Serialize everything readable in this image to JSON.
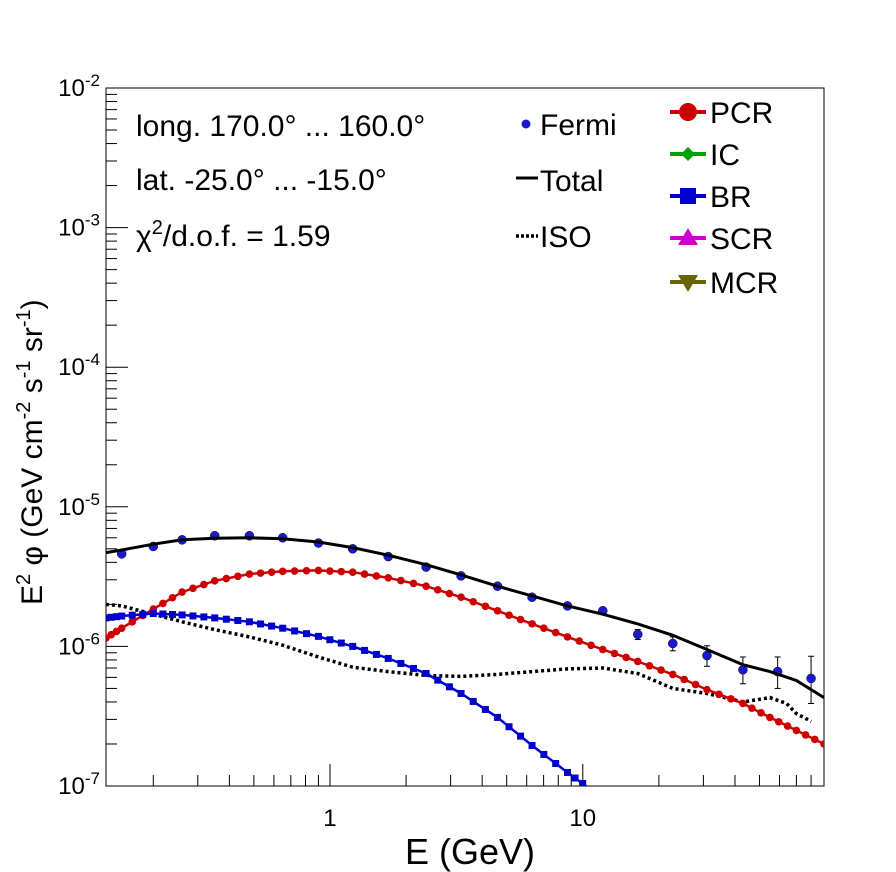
{
  "chart_data": {
    "type": "line",
    "x_scale": "log",
    "y_scale": "log",
    "xlim": [
      0.13,
      90
    ],
    "ylim": [
      1e-07,
      0.01
    ],
    "xlabel": "E (GeV)",
    "ylabel": {
      "prefix": "E",
      "sup1": "2",
      "phi": " φ (GeV cm",
      "sup2": "-2",
      "s": " s",
      "sup3": "-1",
      "sr": " sr",
      "sup4": "-1",
      "close": ")"
    },
    "x_ticks_labeled": [
      {
        "value": 1,
        "label": "1"
      },
      {
        "value": 10,
        "label": "10"
      }
    ],
    "y_ticks_labeled": [
      {
        "value": 1e-07,
        "base": "10",
        "exp": "-7"
      },
      {
        "value": 1e-06,
        "base": "10",
        "exp": "-6"
      },
      {
        "value": 1e-05,
        "base": "10",
        "exp": "-5"
      },
      {
        "value": 0.0001,
        "base": "10",
        "exp": "-4"
      },
      {
        "value": 0.001,
        "base": "10",
        "exp": "-3"
      },
      {
        "value": 0.01,
        "base": "10",
        "exp": "-2"
      }
    ],
    "annotations": {
      "line1": "long. 170.0° ... 160.0°",
      "line2": "lat. -25.0° ... -15.0°",
      "chi_symbol": "χ",
      "chi_sup": "2",
      "chi_rest": "/d.o.f. = 1.59"
    },
    "legend_left": [
      {
        "label": "Fermi",
        "style": "marker",
        "color": "#1a1acc"
      },
      {
        "label": "Total",
        "style": "solid",
        "color": "#000000"
      },
      {
        "label": "ISO",
        "style": "dotted",
        "color": "#000000"
      }
    ],
    "legend_right": [
      {
        "label": "PCR",
        "marker": "circle",
        "color": "#cc0000"
      },
      {
        "label": "IC",
        "marker": "diamond",
        "color": "#00a000"
      },
      {
        "label": "BR",
        "marker": "square",
        "color": "#0000cc"
      },
      {
        "label": "SCR",
        "marker": "triangle-up",
        "color": "#cc00cc"
      },
      {
        "label": "MCR",
        "marker": "triangle-down",
        "color": "#666600"
      }
    ],
    "series": [
      {
        "name": "Fermi",
        "kind": "points",
        "color": "#1a1acc",
        "x": [
          0.15,
          0.2,
          0.26,
          0.35,
          0.48,
          0.65,
          0.9,
          1.23,
          1.7,
          2.4,
          3.3,
          4.6,
          6.3,
          8.7,
          12,
          16.5,
          22.7,
          31,
          43,
          59,
          80
        ],
        "y": [
          4.6e-06,
          5.2e-06,
          5.8e-06,
          6.2e-06,
          6.2e-06,
          6e-06,
          5.5e-06,
          5e-06,
          4.4e-06,
          3.7e-06,
          3.2e-06,
          2.7e-06,
          2.25e-06,
          1.95e-06,
          1.8e-06,
          1.22e-06,
          1.05e-06,
          8.6e-07,
          6.8e-07,
          6.6e-07,
          5.9e-07
        ],
        "err_lo": [
          0,
          0,
          0,
          0,
          0,
          0,
          0,
          0,
          0,
          0,
          0,
          0,
          0,
          0,
          0,
          1e-07,
          1.2e-07,
          1.4e-07,
          1.4e-07,
          1.6e-07,
          2e-07
        ],
        "err_hi": [
          0,
          0,
          0,
          0,
          0,
          0,
          0,
          0,
          0,
          0,
          0,
          0,
          0,
          0,
          0,
          1e-07,
          1.2e-07,
          1.5e-07,
          1.6e-07,
          1.8e-07,
          2.6e-07
        ]
      },
      {
        "name": "Total",
        "kind": "solid",
        "color": "#000000",
        "x": [
          0.13,
          0.15,
          0.2,
          0.26,
          0.35,
          0.48,
          0.65,
          0.9,
          1.23,
          1.7,
          2.4,
          3.3,
          4.6,
          6.3,
          8.7,
          12,
          16.5,
          22.7,
          31,
          43,
          55,
          70,
          90
        ],
        "y": [
          4.7e-06,
          4.9e-06,
          5.4e-06,
          5.8e-06,
          5.95e-06,
          6e-06,
          5.9e-06,
          5.6e-06,
          5.1e-06,
          4.5e-06,
          3.85e-06,
          3.25e-06,
          2.7e-06,
          2.3e-06,
          1.95e-06,
          1.7e-06,
          1.45e-06,
          1.2e-06,
          9.5e-07,
          7.4e-07,
          6.6e-07,
          5.7e-07,
          4.3e-07
        ]
      },
      {
        "name": "ISO",
        "kind": "dotted",
        "color": "#000000",
        "x": [
          0.13,
          0.15,
          0.2,
          0.26,
          0.35,
          0.48,
          0.65,
          0.9,
          1.23,
          1.7,
          2.4,
          3.3,
          4.6,
          6.3,
          8.7,
          12,
          16.5,
          22.7,
          31,
          43,
          55,
          64,
          70,
          80
        ],
        "y": [
          2e-06,
          1.95e-06,
          1.7e-06,
          1.5e-06,
          1.32e-06,
          1.17e-06,
          1.02e-06,
          8.4e-07,
          7.1e-07,
          6.6e-07,
          6.2e-07,
          6.1e-07,
          6.3e-07,
          6.6e-07,
          6.9e-07,
          7e-07,
          6.4e-07,
          5e-07,
          4.6e-07,
          4e-07,
          4.3e-07,
          3.9e-07,
          3.3e-07,
          2.9e-07
        ]
      },
      {
        "name": "PCR",
        "kind": "marker-line",
        "color": "#cc0000",
        "x": [
          0.13,
          0.15,
          0.2,
          0.26,
          0.35,
          0.48,
          0.65,
          0.9,
          1.23,
          1.7,
          2.4,
          3.3,
          4.6,
          6.3,
          8.7,
          12,
          16.5,
          22.7,
          31,
          43,
          55,
          70,
          90
        ],
        "y": [
          1.15e-06,
          1.35e-06,
          1.85e-06,
          2.45e-06,
          2.95e-06,
          3.3e-06,
          3.45e-06,
          3.5e-06,
          3.4e-06,
          3.1e-06,
          2.7e-06,
          2.25e-06,
          1.8e-06,
          1.45e-06,
          1.17e-06,
          9.5e-07,
          7.8e-07,
          6.3e-07,
          4.9e-07,
          3.9e-07,
          3.1e-07,
          2.5e-07,
          2e-07
        ]
      },
      {
        "name": "BR",
        "kind": "marker-line",
        "color": "#0000cc",
        "x": [
          0.13,
          0.15,
          0.2,
          0.26,
          0.35,
          0.48,
          0.65,
          0.9,
          1.23,
          1.7,
          2.4,
          3.3,
          4.6,
          6.3,
          8.7,
          10.7
        ],
        "y": [
          1.6e-06,
          1.65e-06,
          1.72e-06,
          1.68e-06,
          1.6e-06,
          1.5e-06,
          1.35e-06,
          1.18e-06,
          1e-06,
          8.2e-07,
          6.4e-07,
          4.6e-07,
          3.1e-07,
          1.95e-07,
          1.25e-07,
          9.5e-08
        ]
      }
    ]
  }
}
